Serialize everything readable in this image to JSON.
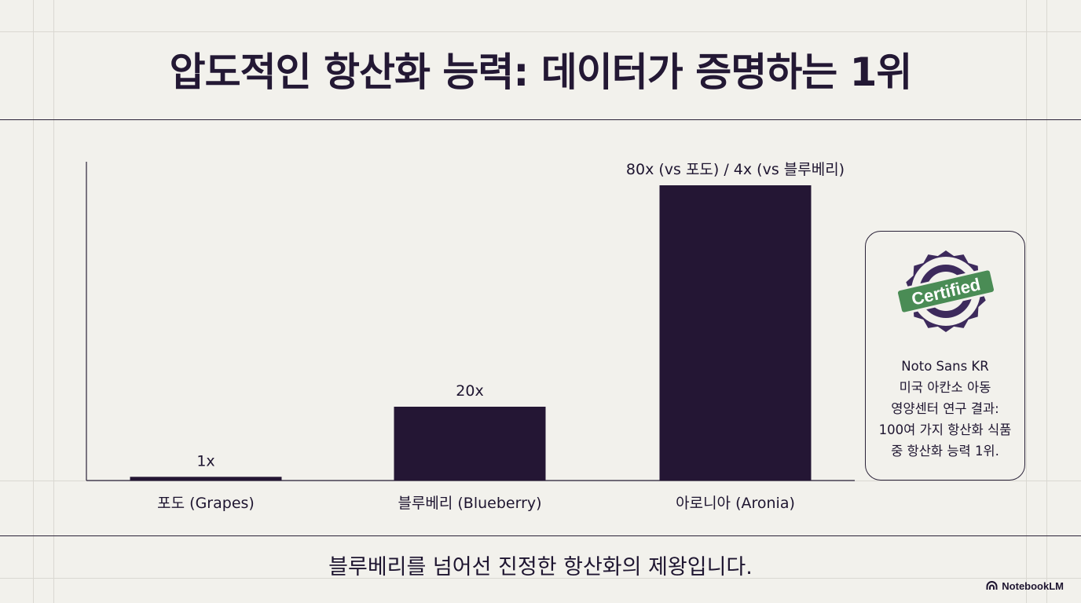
{
  "title": "압도적인 항산화 능력: 데이터가 증명하는 1위",
  "chart_data": {
    "type": "bar",
    "categories": [
      "포도 (Grapes)",
      "블루베리 (Blueberry)",
      "아로니아 (Aronia)"
    ],
    "values": [
      1,
      20,
      80
    ],
    "data_labels": [
      "1x",
      "20x",
      "80x (vs 포도) / 4x (vs 블루베리)"
    ],
    "ylim": [
      0,
      100
    ],
    "bar_color": "#241634",
    "grid": false,
    "xlabel": "",
    "ylabel": ""
  },
  "callout": {
    "badge_text": "Certified",
    "lines": [
      "Noto Sans KR",
      "미국 아칸소 아동",
      "영양센터 연구 결과:",
      "100여 가지 항산화 식품",
      "중 항산화 능력 1위."
    ]
  },
  "footer": {
    "caption": "블루베리를 넘어선 진정한 항산화의 제왕입니다.",
    "brand": "NotebookLM"
  },
  "colors": {
    "background": "#f2f1ec",
    "text": "#1e1530",
    "bar": "#241634",
    "badge_ring": "#3d2a5c",
    "badge_ribbon": "#4a8c55"
  }
}
